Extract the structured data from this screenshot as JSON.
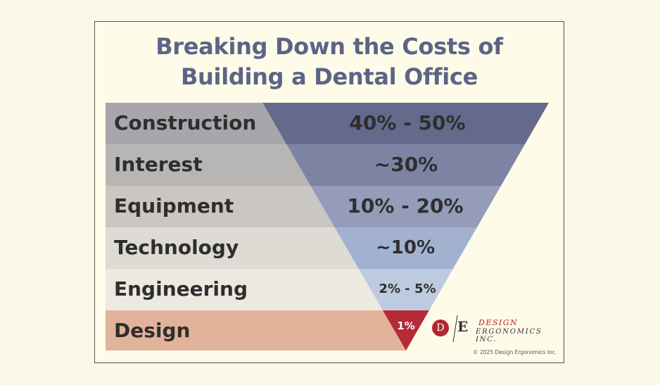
{
  "title": {
    "line1": "Breaking Down the Costs of",
    "line2": "Building a Dental Office"
  },
  "rows": [
    {
      "label": "Construction",
      "value": "40% - 50%",
      "band_color": "#a7a6aa",
      "funnel_color": "#636a8c"
    },
    {
      "label": "Interest",
      "value": "~30%",
      "band_color": "#b8b5b5",
      "funnel_color": "#7d84a3"
    },
    {
      "label": "Equipment",
      "value": "10% - 20%",
      "band_color": "#c9c6c4",
      "funnel_color": "#959cb9"
    },
    {
      "label": "Technology",
      "value": "~10%",
      "band_color": "#dedbd4",
      "funnel_color": "#a3b1d1"
    },
    {
      "label": "Engineering",
      "value": "2% - 5%",
      "band_color": "#ece9e1",
      "funnel_color": "#becadf"
    },
    {
      "label": "Design",
      "value": "1%",
      "band_color": "#e2b39b",
      "funnel_color": "#b72a38"
    }
  ],
  "logo": {
    "mark_d": "D",
    "mark_e": "E",
    "word1": "DESIGN",
    "word2": "ERGONOMICS INC.",
    "accent_color": "#b5262e"
  },
  "copyright": "© 2025 Design Ergonomics Inc."
}
